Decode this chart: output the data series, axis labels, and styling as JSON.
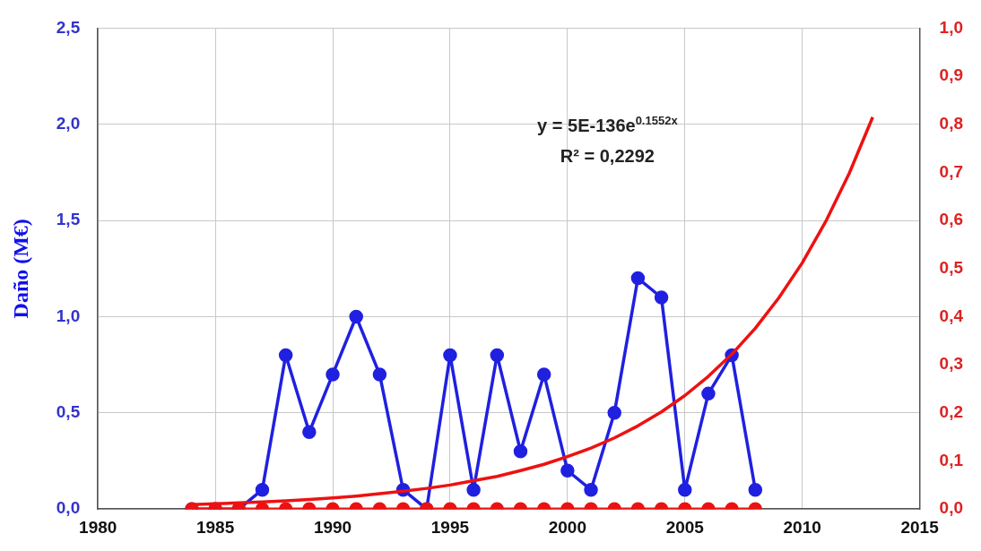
{
  "chart_data": {
    "type": "line",
    "ylabel": "Daño (M€)",
    "x": [
      1984,
      1985,
      1986,
      1987,
      1988,
      1989,
      1990,
      1991,
      1992,
      1993,
      1994,
      1995,
      1996,
      1997,
      1998,
      1999,
      2000,
      2001,
      2002,
      2003,
      2004,
      2005,
      2006,
      2007,
      2008
    ],
    "series": [
      {
        "color": "#2020e0",
        "values": [
          0,
          0,
          0,
          0.1,
          0.8,
          0.4,
          0.7,
          1.0,
          0.7,
          0.1,
          0,
          0.8,
          0.1,
          0.8,
          0.3,
          0.7,
          0.2,
          0.1,
          0.5,
          1.2,
          1.1,
          0.1,
          0.6,
          0.8,
          0.1
        ]
      },
      {
        "color": "#ee1111",
        "axis": "y2",
        "values": [
          0,
          0,
          0,
          0,
          0,
          0,
          0,
          0,
          0,
          0,
          0,
          0,
          0,
          0,
          0,
          0,
          0,
          0,
          0,
          0,
          0,
          0,
          0,
          0,
          0
        ]
      },
      {
        "color": "#ee1111",
        "axis": "y2",
        "marker": "none",
        "x": [
          1984,
          1985,
          1986,
          1987,
          1988,
          1989,
          1990,
          1991,
          1992,
          1993,
          1994,
          1995,
          1996,
          1997,
          1998,
          1999,
          2000,
          2001,
          2002,
          2003,
          2004,
          2005,
          2006,
          2007,
          2008,
          2009,
          2010,
          2011,
          2012,
          2013
        ],
        "values": [
          0.009,
          0.011,
          0.013,
          0.015,
          0.017,
          0.02,
          0.023,
          0.027,
          0.032,
          0.037,
          0.043,
          0.05,
          0.059,
          0.068,
          0.08,
          0.093,
          0.109,
          0.127,
          0.148,
          0.173,
          0.202,
          0.236,
          0.276,
          0.322,
          0.376,
          0.439,
          0.512,
          0.598,
          0.698,
          0.815
        ]
      }
    ],
    "xlim": [
      1980,
      2015
    ],
    "xticks": [
      1980,
      1985,
      1990,
      1995,
      2000,
      2005,
      2010,
      2015
    ],
    "ylim": [
      0,
      2.5
    ],
    "yticks": [
      {
        "value": 0,
        "label": "0,0"
      },
      {
        "value": 0.5,
        "label": "0,5"
      },
      {
        "value": 1,
        "label": "1,0"
      },
      {
        "value": 1.5,
        "label": "1,5"
      },
      {
        "value": 2,
        "label": "2,0"
      },
      {
        "value": 2.5,
        "label": "2,5"
      }
    ],
    "y2lim": [
      0,
      1
    ],
    "y2ticks": [
      {
        "value": 0,
        "label": "0,0"
      },
      {
        "value": 0.1,
        "label": "0,1"
      },
      {
        "value": 0.2,
        "label": "0,2"
      },
      {
        "value": 0.3,
        "label": "0,3"
      },
      {
        "value": 0.4,
        "label": "0,4"
      },
      {
        "value": 0.5,
        "label": "0,5"
      },
      {
        "value": 0.6,
        "label": "0,6"
      },
      {
        "value": 0.7,
        "label": "0,7"
      },
      {
        "value": 0.8,
        "label": "0,8"
      },
      {
        "value": 0.9,
        "label": "0,9"
      },
      {
        "value": 1,
        "label": "1,0"
      }
    ],
    "annotations": [
      "y = 5E-136e$^{0.1552x}$",
      "R² = 0,2292"
    ],
    "grid": true,
    "legend": false,
    "marker": "circle",
    "line_style": "solid"
  }
}
